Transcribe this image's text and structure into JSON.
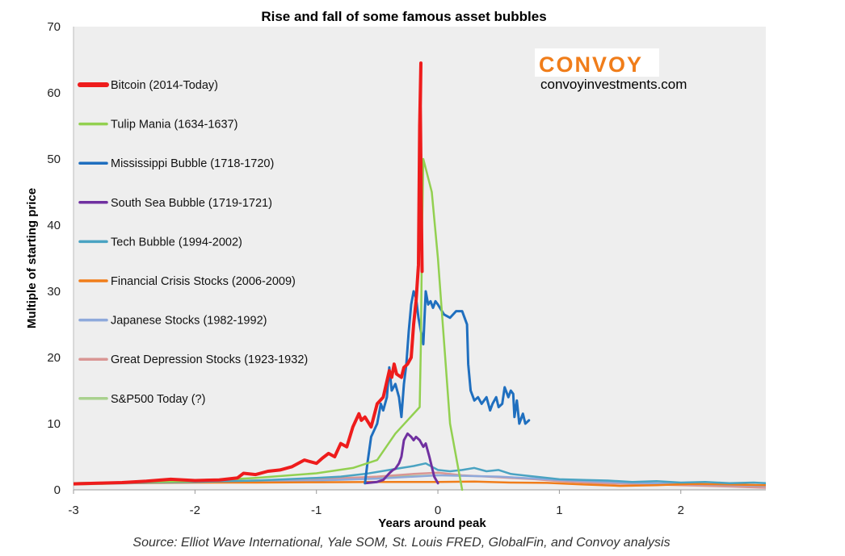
{
  "chart_data": {
    "type": "line",
    "title": "Rise and fall of some famous asset bubbles",
    "xlabel": "Years around peak",
    "ylabel": "Multiple of starting price",
    "xlim": [
      -3,
      2.7
    ],
    "ylim": [
      0,
      70
    ],
    "x_ticks": [
      -3,
      -2,
      -1,
      0,
      1,
      2
    ],
    "y_ticks": [
      0,
      10,
      20,
      30,
      40,
      50,
      60,
      70
    ],
    "grid": false,
    "legend_position": "left",
    "source": "Source: Elliot Wave International, Yale SOM, St. Louis FRED, GlobalFin, and Convoy analysis",
    "brand": {
      "name": "CONVOY",
      "url": "convoyinvestments.com",
      "name_color": "#f07d1a"
    },
    "series": [
      {
        "name": "Bitcoin (2014-Today)",
        "color": "#ee1c1c",
        "x": [
          -3,
          -2.8,
          -2.6,
          -2.4,
          -2.2,
          -2.0,
          -1.8,
          -1.65,
          -1.6,
          -1.5,
          -1.4,
          -1.3,
          -1.2,
          -1.1,
          -1.0,
          -0.95,
          -0.9,
          -0.85,
          -0.8,
          -0.75,
          -0.7,
          -0.65,
          -0.63,
          -0.6,
          -0.55,
          -0.5,
          -0.45,
          -0.4,
          -0.38,
          -0.36,
          -0.34,
          -0.3,
          -0.28,
          -0.25,
          -0.22,
          -0.2,
          -0.18,
          -0.16,
          -0.15,
          -0.14,
          -0.145,
          -0.135,
          -0.13
        ],
        "y": [
          0.9,
          1.0,
          1.1,
          1.3,
          1.6,
          1.4,
          1.5,
          1.8,
          2.5,
          2.3,
          2.8,
          3.0,
          3.5,
          4.5,
          4.0,
          4.8,
          5.5,
          5.0,
          7.0,
          6.5,
          9.5,
          11.5,
          10.5,
          11.0,
          9.5,
          13.0,
          14.0,
          18.0,
          17.0,
          19.0,
          17.5,
          17.0,
          18.5,
          19.0,
          20.0,
          25.0,
          28.5,
          34.0,
          55.0,
          64.5,
          58.0,
          40.0,
          33.0
        ]
      },
      {
        "name": "Tulip Mania (1634-1637)",
        "color": "#92d050",
        "x": [
          -3,
          -2.0,
          -1.5,
          -1.0,
          -0.7,
          -0.5,
          -0.35,
          -0.15,
          -0.14,
          -0.13,
          -0.12,
          -0.05,
          0.0,
          0.1,
          0.2
        ],
        "y": [
          1.0,
          1.3,
          1.8,
          2.5,
          3.3,
          4.5,
          8.5,
          12.5,
          22.0,
          40.0,
          50.0,
          45.0,
          35.0,
          10.0,
          0.0
        ]
      },
      {
        "name": "Mississippi Bubble (1718-1720)",
        "color": "#1f6fbf",
        "x": [
          -0.6,
          -0.58,
          -0.55,
          -0.5,
          -0.47,
          -0.45,
          -0.42,
          -0.4,
          -0.38,
          -0.35,
          -0.32,
          -0.3,
          -0.28,
          -0.26,
          -0.24,
          -0.22,
          -0.2,
          -0.18,
          -0.16,
          -0.14,
          -0.12,
          -0.1,
          -0.08,
          -0.06,
          -0.04,
          -0.02,
          0.0,
          0.05,
          0.1,
          0.15,
          0.2,
          0.22,
          0.24,
          0.25,
          0.27,
          0.3,
          0.33,
          0.36,
          0.4,
          0.43,
          0.45,
          0.48,
          0.5,
          0.53,
          0.55,
          0.58,
          0.6,
          0.62,
          0.63,
          0.65,
          0.67,
          0.7,
          0.72,
          0.75
        ],
        "y": [
          1.0,
          4.0,
          8.0,
          10.0,
          13.0,
          12.0,
          14.0,
          18.5,
          15.0,
          16.0,
          14.0,
          11.0,
          16.0,
          19.0,
          24.0,
          28.0,
          30.0,
          29.0,
          26.0,
          24.0,
          22.0,
          30.0,
          28.0,
          28.5,
          27.5,
          28.5,
          28.0,
          26.5,
          26.0,
          27.0,
          27.0,
          26.0,
          25.0,
          19.0,
          15.0,
          13.5,
          14.0,
          13.0,
          14.0,
          12.0,
          13.0,
          14.0,
          12.5,
          13.0,
          15.5,
          14.0,
          15.0,
          14.5,
          11.0,
          13.5,
          10.0,
          11.5,
          10.0,
          10.5
        ]
      },
      {
        "name": "South Sea Bubble (1719-1721)",
        "color": "#7030a0",
        "x": [
          -0.6,
          -0.5,
          -0.45,
          -0.4,
          -0.37,
          -0.35,
          -0.32,
          -0.3,
          -0.28,
          -0.25,
          -0.22,
          -0.2,
          -0.18,
          -0.15,
          -0.12,
          -0.1,
          -0.07,
          -0.05,
          -0.03,
          0.0
        ],
        "y": [
          1.0,
          1.2,
          1.5,
          2.5,
          3.0,
          3.2,
          4.0,
          5.0,
          7.5,
          8.5,
          8.0,
          7.5,
          8.0,
          7.5,
          6.5,
          7.0,
          5.0,
          3.5,
          2.0,
          1.0
        ]
      },
      {
        "name": "Tech Bubble (1994-2002)",
        "color": "#4aa3c2",
        "x": [
          -3,
          -2.5,
          -2.0,
          -1.5,
          -1.0,
          -0.8,
          -0.6,
          -0.4,
          -0.3,
          -0.2,
          -0.1,
          -0.05,
          0.0,
          0.1,
          0.2,
          0.3,
          0.4,
          0.5,
          0.6,
          0.7,
          0.8,
          0.9,
          1.0,
          1.2,
          1.4,
          1.6,
          1.8,
          2.0,
          2.2,
          2.4,
          2.6,
          2.7
        ],
        "y": [
          1.0,
          1.1,
          1.2,
          1.4,
          1.8,
          2.0,
          2.4,
          3.0,
          3.3,
          3.6,
          4.0,
          3.5,
          3.0,
          2.8,
          3.0,
          3.3,
          2.8,
          3.0,
          2.4,
          2.2,
          2.0,
          1.8,
          1.6,
          1.5,
          1.4,
          1.2,
          1.3,
          1.1,
          1.2,
          1.0,
          1.1,
          1.0
        ]
      },
      {
        "name": "Financial Crisis Stocks (2006-2009)",
        "color": "#f07d1a",
        "x": [
          -3,
          -2.5,
          -2.0,
          -1.5,
          -1.0,
          -0.5,
          0.0,
          0.3,
          0.6,
          0.9,
          1.2,
          1.5,
          1.8,
          2.1,
          2.4,
          2.7
        ],
        "y": [
          1.0,
          1.05,
          1.1,
          1.1,
          1.15,
          1.2,
          1.2,
          1.25,
          1.1,
          1.05,
          0.8,
          0.6,
          0.7,
          0.9,
          0.8,
          0.7
        ]
      },
      {
        "name": "Japanese Stocks (1982-1992)",
        "color": "#8ea9db",
        "x": [
          -3,
          -2.5,
          -2.0,
          -1.5,
          -1.0,
          -0.5,
          0.0,
          0.5,
          1.0,
          1.5,
          2.0,
          2.5,
          2.7
        ],
        "y": [
          0.9,
          1.0,
          1.1,
          1.2,
          1.4,
          1.7,
          2.2,
          2.0,
          1.5,
          1.1,
          0.9,
          0.7,
          0.6
        ]
      },
      {
        "name": "Great Depression Stocks (1923-1932)",
        "color": "#d99694",
        "x": [
          -3,
          -2.5,
          -2.0,
          -1.5,
          -1.0,
          -0.5,
          -0.2,
          0.0,
          0.2,
          0.5,
          0.8,
          1.0,
          1.3,
          1.6,
          2.0,
          2.4,
          2.7
        ],
        "y": [
          1.0,
          1.1,
          1.2,
          1.4,
          1.6,
          2.0,
          2.4,
          2.6,
          2.2,
          1.9,
          1.6,
          1.3,
          1.0,
          0.9,
          0.7,
          0.5,
          0.3
        ]
      },
      {
        "name": "S&P500 Today (?)",
        "color": "#a9d18e",
        "x": [
          -3,
          -2.5,
          -2.0,
          -1.5,
          -1.0,
          -0.5,
          0.0
        ],
        "y": [
          0.8,
          1.0,
          1.2,
          1.4,
          1.6,
          1.9,
          2.2
        ]
      }
    ]
  }
}
